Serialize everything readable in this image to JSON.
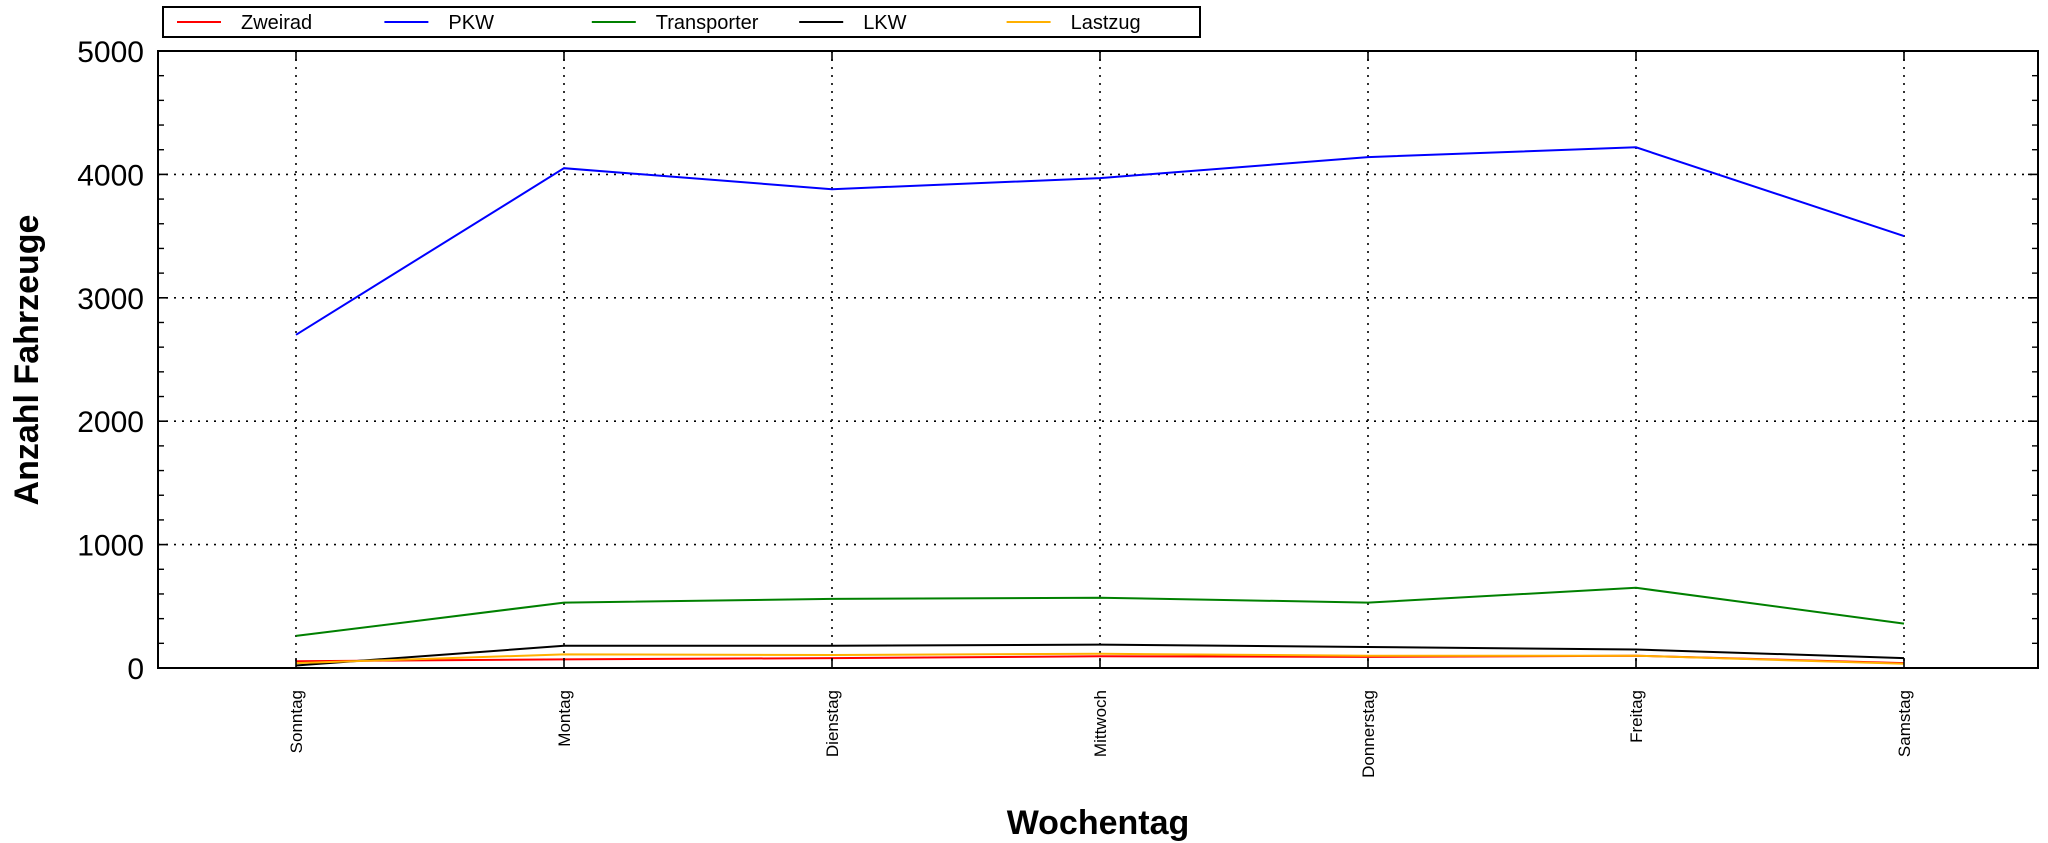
{
  "chart_data": {
    "type": "line",
    "xlabel": "Wochentag",
    "ylabel": "Anzahl Fahrzeuge",
    "ylim": [
      0,
      5000
    ],
    "yticks": [
      0,
      1000,
      2000,
      3000,
      4000,
      5000
    ],
    "grid": true,
    "legend_position": "top-left",
    "categories": [
      "Sonntag",
      "Montag",
      "Dienstag",
      "Mittwoch",
      "Donnerstag",
      "Freitag",
      "Samstag"
    ],
    "series": [
      {
        "name": "Zweirad",
        "color": "#ff0000",
        "values": [
          55,
          70,
          80,
          95,
          90,
          100,
          40
        ]
      },
      {
        "name": "PKW",
        "color": "#0000ff",
        "values": [
          2700,
          4050,
          3880,
          3970,
          4140,
          4220,
          3500
        ]
      },
      {
        "name": "Transporter",
        "color": "#008000",
        "values": [
          260,
          530,
          560,
          570,
          530,
          650,
          360
        ]
      },
      {
        "name": "LKW",
        "color": "#000000",
        "values": [
          20,
          180,
          180,
          190,
          170,
          150,
          80
        ]
      },
      {
        "name": "Lastzug",
        "color": "#ffb000",
        "values": [
          40,
          110,
          105,
          115,
          100,
          100,
          35
        ]
      }
    ]
  }
}
